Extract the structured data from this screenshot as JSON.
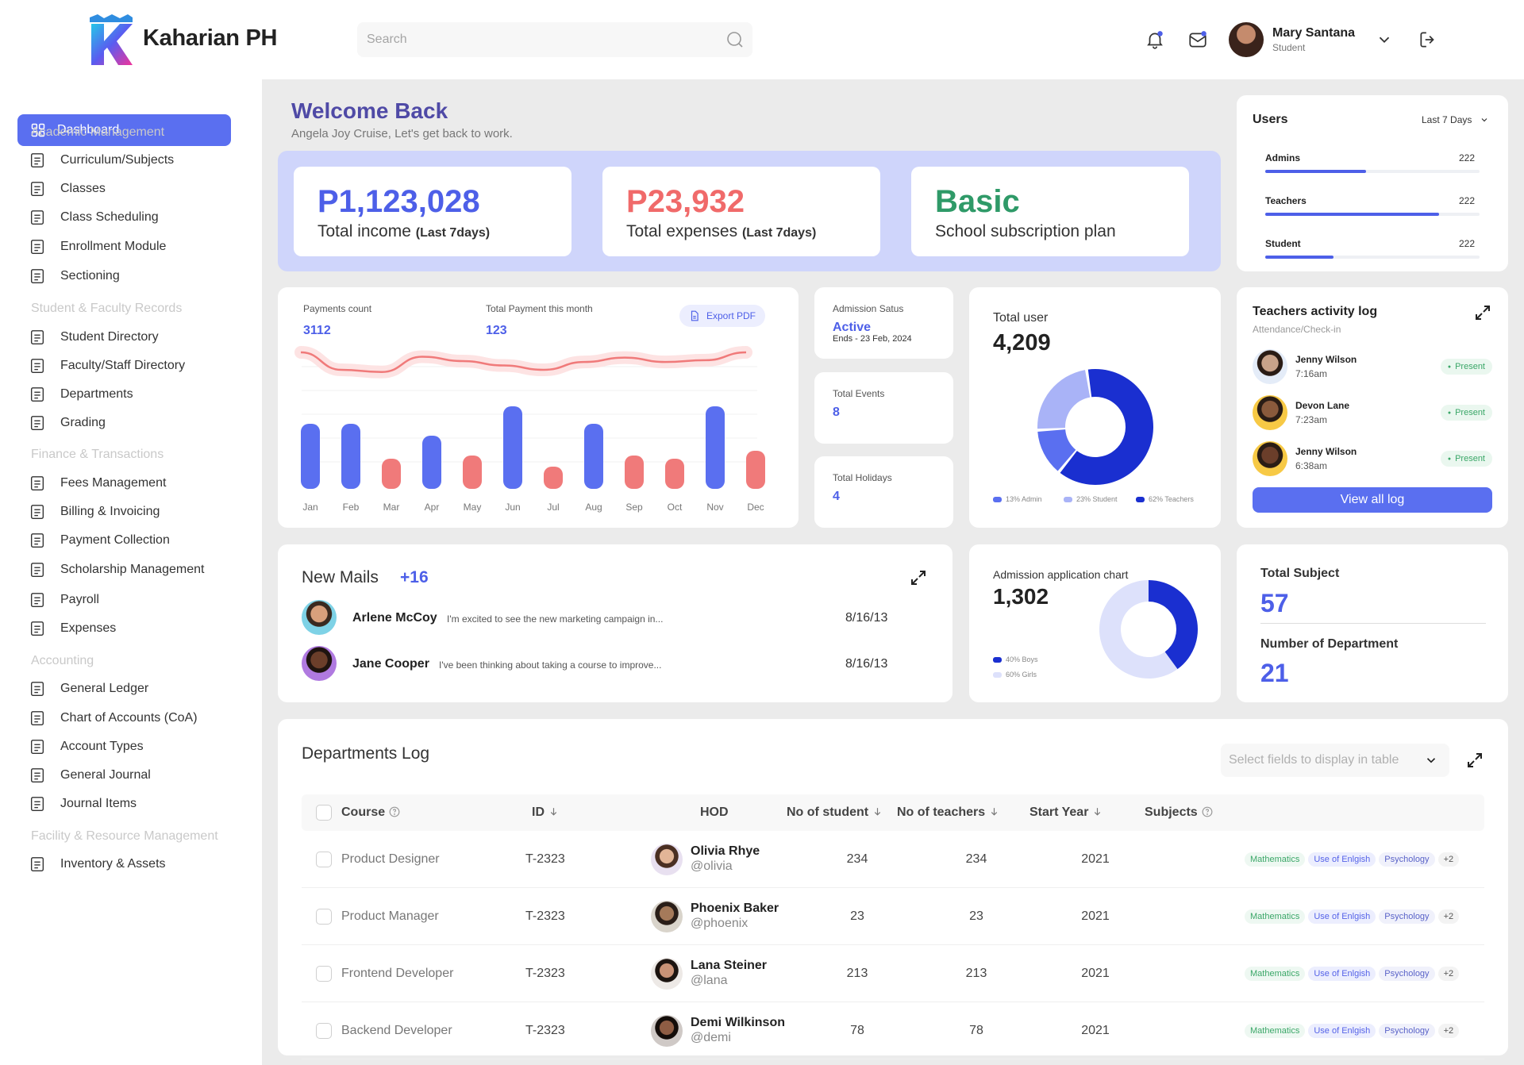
{
  "app": {
    "brand": "Kaharian PH",
    "search_placeholder": "Search",
    "user_name": "Mary Santana",
    "user_role": "Student"
  },
  "sidebar": {
    "active": "Dashboard",
    "sections": [
      {
        "title": "Academic Management",
        "items": [
          "Curriculum/Subjects",
          "Classes",
          "Class Scheduling",
          "Enrollment Module",
          "Sectioning"
        ]
      },
      {
        "title": "Student & Faculty Records",
        "items": [
          "Student Directory",
          "Faculty/Staff Directory",
          "Departments",
          "Grading"
        ]
      },
      {
        "title": "Finance & Transactions",
        "items": [
          "Fees Management",
          "Billing & Invoicing",
          "Payment Collection",
          "Scholarship Management",
          "Payroll",
          "Expenses"
        ]
      },
      {
        "title": "Accounting",
        "items": [
          "General Ledger",
          "Chart of Accounts (CoA)",
          "Account Types",
          "General Journal",
          "Journal Items"
        ]
      },
      {
        "title": "Facility & Resource Management",
        "items": [
          "Inventory & Assets"
        ]
      }
    ]
  },
  "welcome": {
    "title": "Welcome Back",
    "subtitle": "Angela Joy Cruise, Let's get back to work."
  },
  "stats": {
    "income_value": "P1,123,028",
    "income_label": "Total income",
    "income_period": "(Last 7days)",
    "expenses_value": "P23,932",
    "expenses_label": "Total expenses",
    "expenses_period": "(Last 7days)",
    "plan_value": "Basic",
    "plan_label": "School subscription plan"
  },
  "users_card": {
    "title": "Users",
    "range": "Last 7 Days",
    "rows": [
      {
        "label": "Admins",
        "value": "222",
        "fill": 0.47
      },
      {
        "label": "Teachers",
        "value": "222",
        "fill": 0.81
      },
      {
        "label": "Student",
        "value": "222",
        "fill": 0.32
      }
    ]
  },
  "payments": {
    "count_label": "Payments count",
    "count_value": "3112",
    "month_label": "Total Payment this month",
    "month_value": "123",
    "export_label": "Export PDF"
  },
  "chart_data": [
    {
      "type": "bar",
      "categories": [
        "Jan",
        "Feb",
        "Mar",
        "Apr",
        "May",
        "Jun",
        "Jul",
        "Aug",
        "Sep",
        "Oct",
        "Nov",
        "Dec"
      ],
      "values": [
        82,
        82,
        38,
        67,
        42,
        104,
        28,
        82,
        42,
        38,
        104,
        48
      ],
      "colors": [
        "#5a6ff0",
        "#5a6ff0",
        "#f07a7a",
        "#5a6ff0",
        "#f07a7a",
        "#5a6ff0",
        "#f07a7a",
        "#5a6ff0",
        "#f07a7a",
        "#f07a7a",
        "#5a6ff0",
        "#f07a7a"
      ],
      "line": [
        160,
        120,
        115,
        150,
        140,
        130,
        120,
        138,
        148,
        138,
        142,
        160
      ],
      "line_color": "#f07a7a",
      "grid": true
    },
    {
      "type": "pie",
      "labels": [
        "13% Admin",
        "23% Student",
        "62% Teachers"
      ],
      "values": [
        13,
        23,
        62
      ],
      "colors": [
        "#5a6ff0",
        "#a9b3f7",
        "#1a2fd0"
      ]
    },
    {
      "type": "pie",
      "labels": [
        "40% Boys",
        "60% Girls"
      ],
      "values": [
        40,
        60
      ],
      "colors": [
        "#1a2fd0",
        "#dde1fb"
      ]
    }
  ],
  "admission": {
    "status_label": "Admission Satus",
    "status_value": "Active",
    "ends": "Ends - 23 Feb, 2024",
    "events_label": "Total Events",
    "events_value": "8",
    "holidays_label": "Total Holidays",
    "holidays_value": "4"
  },
  "total_user": {
    "label": "Total user",
    "value": "4,209"
  },
  "activity": {
    "title": "Teachers activity log",
    "subtitle": "Attendance/Check-in",
    "rows": [
      {
        "name": "Jenny Wilson",
        "time": "7:16am",
        "status": "Present"
      },
      {
        "name": "Devon Lane",
        "time": "7:23am",
        "status": "Present"
      },
      {
        "name": "Jenny Wilson",
        "time": "6:38am",
        "status": "Present"
      }
    ],
    "button": "View all log"
  },
  "mails": {
    "title": "New Mails",
    "count": "+16",
    "rows": [
      {
        "name": "Arlene McCoy",
        "preview": "I'm excited to see the new marketing campaign in...",
        "date": "8/16/13"
      },
      {
        "name": "Jane Cooper",
        "preview": "I've been thinking about taking a course to improve...",
        "date": "8/16/13"
      }
    ]
  },
  "admission_chart": {
    "title": "Admission application chart",
    "value": "1,302"
  },
  "subjects": {
    "total_label": "Total Subject",
    "total_value": "57",
    "dept_label": "Number of Department",
    "dept_value": "21"
  },
  "departments": {
    "title": "Departments Log",
    "select_placeholder": "Select fields to display in table",
    "columns": [
      "Course",
      "ID",
      "HOD",
      "No of student",
      "No of teachers",
      "Start Year",
      "Subjects"
    ],
    "rows": [
      {
        "course": "Product Designer",
        "id": "T-2323",
        "hod": "Olivia Rhye",
        "handle": "@olivia",
        "students": "234",
        "teachers": "234",
        "year": "2021"
      },
      {
        "course": "Product Manager",
        "id": "T-2323",
        "hod": "Phoenix Baker",
        "handle": "@phoenix",
        "students": "23",
        "teachers": "23",
        "year": "2021"
      },
      {
        "course": "Frontend Developer",
        "id": "T-2323",
        "hod": "Lana Steiner",
        "handle": "@lana",
        "students": "213",
        "teachers": "213",
        "year": "2021"
      },
      {
        "course": "Backend Developer",
        "id": "T-2323",
        "hod": "Demi Wilkinson",
        "handle": "@demi",
        "students": "78",
        "teachers": "78",
        "year": "2021"
      }
    ],
    "chips": [
      "Mathematics",
      "Use of Enlgish",
      "Psychology",
      "+2"
    ]
  }
}
